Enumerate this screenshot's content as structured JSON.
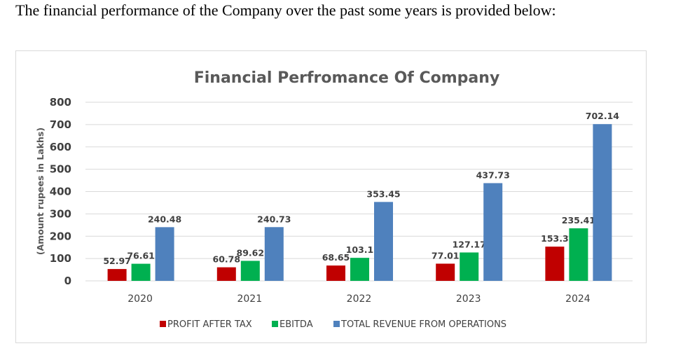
{
  "intro_text": "The financial performance of the Company over the past some years is provided below:",
  "chart_data": {
    "type": "bar",
    "title": "Financial Perfromance Of Company",
    "ylabel": "(Amount rupees in Lakhs)",
    "xlabel": "",
    "ylim": [
      0,
      800
    ],
    "yticks": [
      0,
      100,
      200,
      300,
      400,
      500,
      600,
      700,
      800
    ],
    "grid": true,
    "legend_position": "bottom",
    "categories": [
      "2020",
      "2021",
      "2022",
      "2023",
      "2024"
    ],
    "series": [
      {
        "name": "PROFIT AFTER TAX",
        "color": "#c00000",
        "values": [
          52.97,
          60.78,
          68.65,
          77.01,
          153.3
        ]
      },
      {
        "name": "EBITDA",
        "color": "#00b050",
        "values": [
          76.61,
          89.62,
          103.1,
          127.17,
          235.41
        ]
      },
      {
        "name": "TOTAL REVENUE FROM OPERATIONS",
        "color": "#4f81bd",
        "values": [
          240.48,
          240.73,
          353.45,
          437.73,
          702.14
        ]
      }
    ]
  }
}
